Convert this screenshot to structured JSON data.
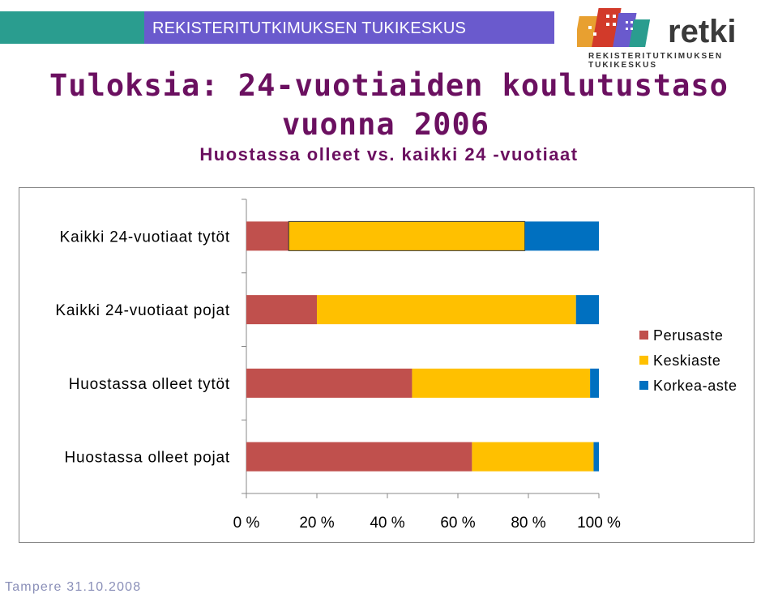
{
  "header": {
    "label": "REKISTERITUTKIMUKSEN TUKIKESKUS",
    "accent_teal": "#2a9d8f",
    "accent_purple": "#6a5acd"
  },
  "logo": {
    "name": "retki",
    "subtitle": "REKISTERITUTKIMUKSEN TUKIKESKUS"
  },
  "title": {
    "line1": "Tuloksia: 24-vuotiaiden koulutustaso",
    "line2": "vuonna 2006",
    "subtitle": "Huostassa olleet vs. kaikki 24 -vuotiaat",
    "color": "#6b1060"
  },
  "chart_data": {
    "type": "bar",
    "orientation": "horizontal",
    "stacked": "percent",
    "categories": [
      "Kaikki 24-vuotiaat tytöt",
      "Kaikki 24-vuotiaat pojat",
      "Huostassa olleet tytöt",
      "Huostassa olleet pojat"
    ],
    "series": [
      {
        "name": "Perusaste",
        "color": "#c0504d",
        "values": [
          12,
          20,
          47,
          64
        ]
      },
      {
        "name": "Keskiaste",
        "color": "#ffc000",
        "values": [
          67,
          73.5,
          50.5,
          34.5
        ]
      },
      {
        "name": "Korkea-aste",
        "color": "#0070c0",
        "values": [
          21,
          6.5,
          2.5,
          1.5
        ]
      }
    ],
    "xlim": [
      0,
      100
    ],
    "xticks": [
      "0 %",
      "20 %",
      "40 %",
      "60 %",
      "80 %",
      "100 %"
    ],
    "grid": false,
    "legend": "right"
  },
  "footer": {
    "text": "Tampere 31.10.2008"
  }
}
